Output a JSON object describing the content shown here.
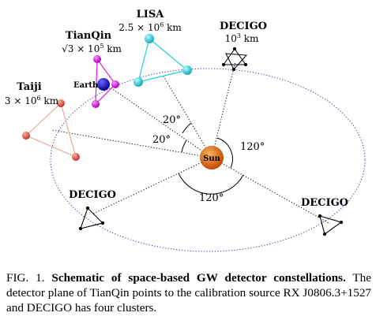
{
  "figure": {
    "lisa": {
      "name": "LISA",
      "size_base": "2.5 × 10",
      "size_exp": "6",
      "size_unit": " km"
    },
    "tianqin": {
      "name": "TianQin",
      "size_base": "√3 × 10",
      "size_exp": "5",
      "size_unit": " km"
    },
    "taiji": {
      "name": "Taiji",
      "size_base": "3 × 10",
      "size_exp": "6",
      "size_unit": " km"
    },
    "decigo_top": {
      "name": "DECIGO",
      "size_base": "10",
      "size_exp": "3",
      "size_unit": " km"
    },
    "decigo_left": {
      "name": "DECIGO"
    },
    "decigo_right": {
      "name": "DECIGO"
    },
    "earth_label": "Earth",
    "sun_label": "Sun",
    "angles": {
      "lisa_angle": "20°",
      "taiji_angle": "20°",
      "right_angle": "120°",
      "bottom_angle": "120°"
    },
    "colors": {
      "lisa": "#1fd4e0",
      "tianqin": "#e020e0",
      "taiji": "#e06060",
      "taiji_lines": "#f2a090",
      "earth": "#1a10d0",
      "sun": "#e06a10",
      "orbit": "#3030a0"
    }
  },
  "caption": {
    "prefix": "FIG. 1.",
    "title": "Schematic of space-based GW detector constellations.",
    "body": "The detector plane of TianQin points to the calibration source RX J0806.3+1527 and DECIGO has four clusters."
  }
}
